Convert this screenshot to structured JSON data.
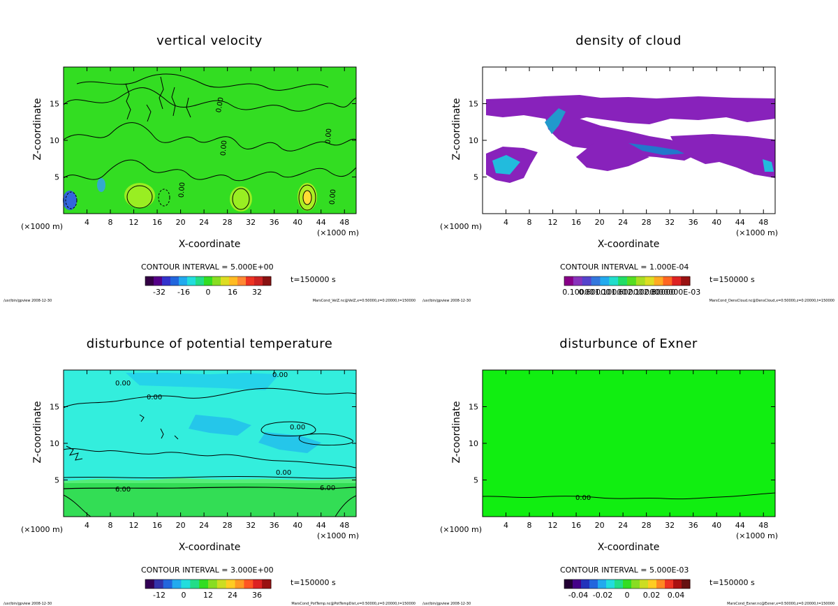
{
  "common": {
    "ylabel": "Z-coordinate",
    "xlabel": "X-coordinate",
    "unit": "(×1000 m)",
    "time": "t=150000 s",
    "footer_left": "/usr/bin/gpview  2008-12-30",
    "x_ticks": [
      4,
      8,
      12,
      16,
      20,
      24,
      28,
      32,
      36,
      40,
      44,
      48
    ],
    "y_ticks": [
      5,
      10,
      15
    ],
    "xlim": [
      0,
      50
    ],
    "ylim": [
      0,
      20
    ]
  },
  "chart_data": [
    {
      "type": "heatmap",
      "title": "vertical velocity",
      "contour_interval": "CONTOUR INTERVAL = 5.000E+00",
      "colorbar_labels": [
        "-32",
        "-16",
        "0",
        "16",
        "32"
      ],
      "colorbar_range": [
        -40,
        40
      ],
      "contour_labels": [
        "0.00",
        "0.00",
        "0.00",
        "0.00",
        "0.00"
      ],
      "footer_right": "MarsCond_VelZ.nc@VelZ,x=0:50000,z=0:20000,t=150000",
      "colors": {
        "background": "#33dd22",
        "high": "#ffee33",
        "low": "#3355dd"
      }
    },
    {
      "type": "heatmap",
      "title": "density of cloud",
      "contour_interval": "CONTOUR INTERVAL = 1.000E-04",
      "colorbar_labels": [
        "0.10000",
        "0.60000",
        "1.10000",
        "1.60000",
        "2.10000",
        "2.60000",
        "3.00000E-03"
      ],
      "colorbar_range": [
        0,
        0.003
      ],
      "contour_labels": [],
      "footer_right": "MarsCond_DensCloud.nc@DensCloud,x=0:50000,z=0:20000,t=150000",
      "colors": {
        "background": "#ffffff",
        "cloud": "#8822bb",
        "dense": "#22bbdd"
      }
    },
    {
      "type": "heatmap",
      "title": "disturbunce of potential temperature",
      "contour_interval": "CONTOUR INTERVAL = 3.000E+00",
      "colorbar_labels": [
        "-12",
        "0",
        "12",
        "24",
        "36"
      ],
      "colorbar_range": [
        -18,
        40
      ],
      "contour_labels": [
        "0.00",
        "0.00",
        "0.00",
        "0.00",
        "0.00",
        "6.00",
        "6.00"
      ],
      "footer_right": "MarsCond_PotTemp.nc@PotTempDist,x=0:50000,z=0:20000,t=150000",
      "colors": {
        "upper": "#33eedd",
        "lower": "#33dd44",
        "patch": "#22bbee"
      }
    },
    {
      "type": "heatmap",
      "title": "disturbunce of Exner",
      "contour_interval": "CONTOUR INTERVAL = 5.000E-03",
      "colorbar_labels": [
        "-0.04",
        "-0.02",
        "0",
        "0.02",
        "0.04"
      ],
      "colorbar_range": [
        -0.05,
        0.05
      ],
      "contour_labels": [
        "0.00"
      ],
      "footer_right": "MarsCond_Exner.nc@Exner,x=0:50000,z=0:20000,t=150000",
      "colors": {
        "background": "#11ee11"
      }
    }
  ]
}
